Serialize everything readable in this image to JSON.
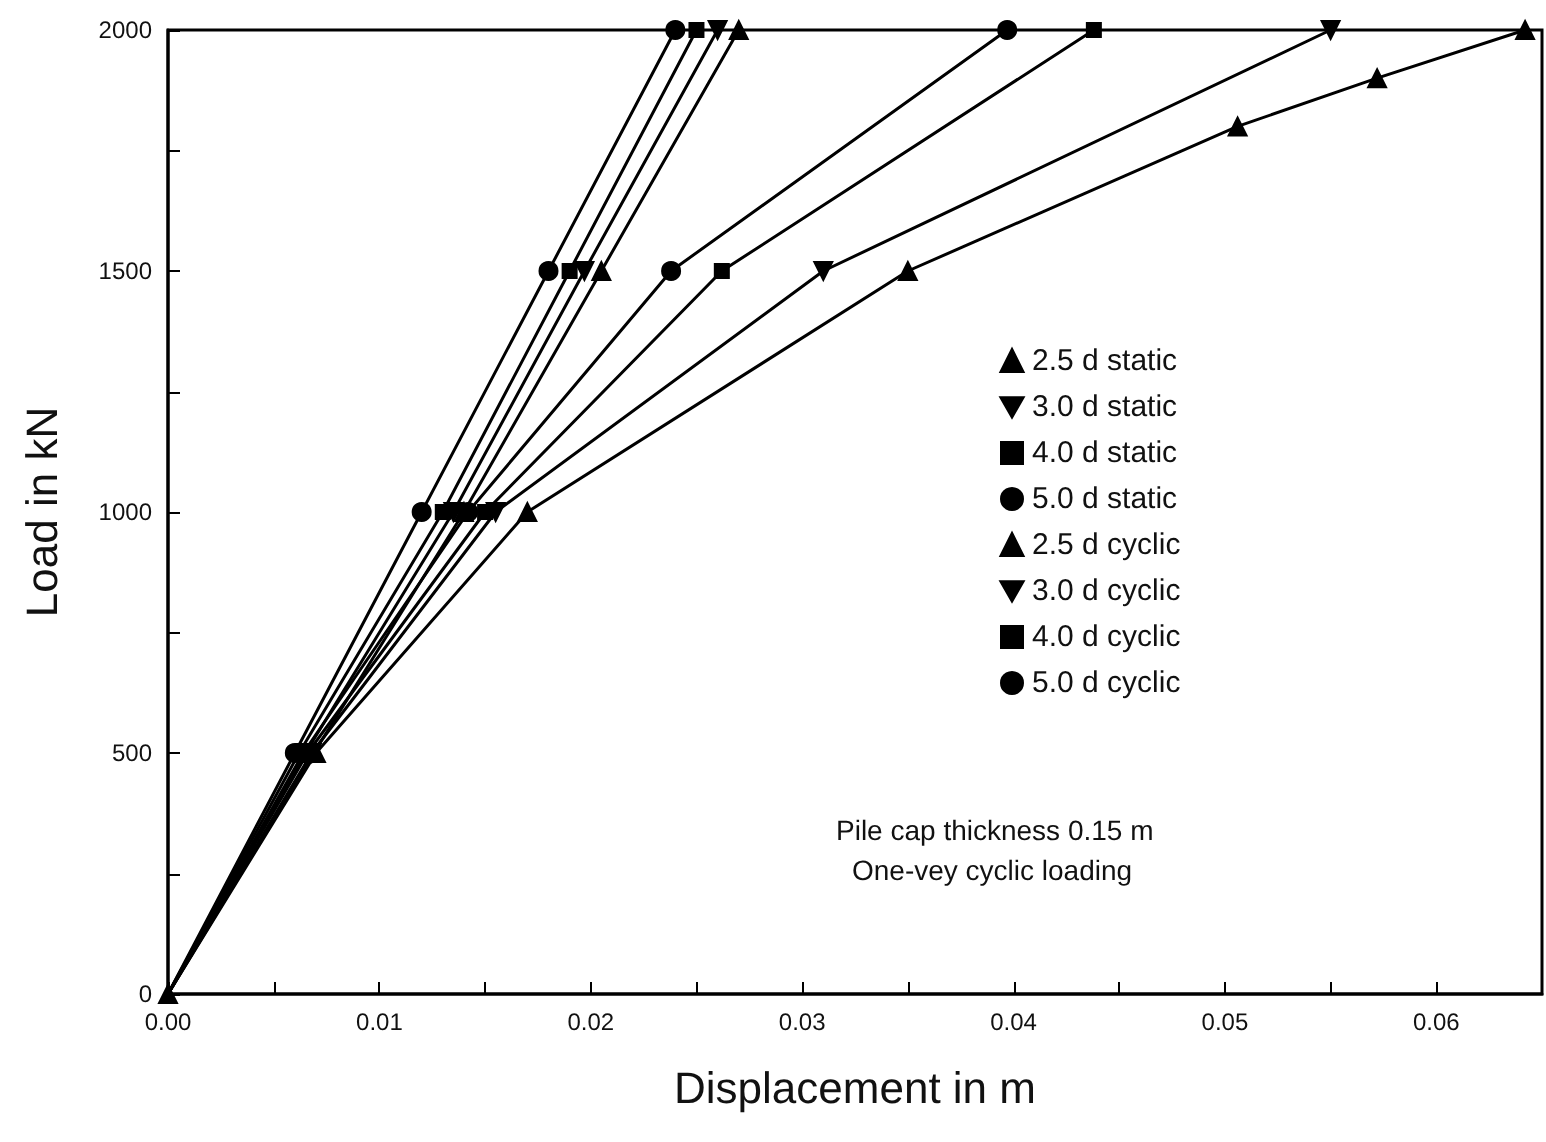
{
  "chart_data": {
    "type": "line",
    "xlabel": "Displacement in m",
    "ylabel": "Load in kN",
    "xlim": [
      0,
      0.065
    ],
    "ylim": [
      0,
      2000
    ],
    "xticks": [
      {
        "value": 0,
        "label": "0.00"
      },
      {
        "value": 0.005,
        "label": null
      },
      {
        "value": 0.01,
        "label": "0.01"
      },
      {
        "value": 0.015,
        "label": null
      },
      {
        "value": 0.02,
        "label": "0.02"
      },
      {
        "value": 0.025,
        "label": null
      },
      {
        "value": 0.03,
        "label": "0.03"
      },
      {
        "value": 0.035,
        "label": null
      },
      {
        "value": 0.04,
        "label": "0.04"
      },
      {
        "value": 0.045,
        "label": null
      },
      {
        "value": 0.05,
        "label": "0.05"
      },
      {
        "value": 0.055,
        "label": null
      },
      {
        "value": 0.06,
        "label": "0.06"
      }
    ],
    "yticks": [
      0,
      {
        "value": 250,
        "label": null
      },
      500,
      {
        "value": 750,
        "label": null
      },
      1000,
      {
        "value": 1250,
        "label": null
      },
      1500,
      {
        "value": 1750,
        "label": null
      },
      2000
    ],
    "grid": false,
    "legend": "right",
    "line_style": "solid",
    "annotations": [
      "Pile cap thickness 0.15 m",
      "One-vey cyclic loading"
    ],
    "series": [
      {
        "name": "2.5 d static",
        "color": "#000000",
        "marker": "triangle",
        "x": [
          0,
          0.0069,
          0.014,
          0.0205,
          0.027
        ],
        "values": [
          0,
          500,
          1000,
          1500,
          2000
        ]
      },
      {
        "name": "3.0 d static",
        "color": "#000000",
        "marker": "triangle-down",
        "x": [
          0,
          0.0065,
          0.0135,
          0.0197,
          0.026
        ],
        "values": [
          0,
          500,
          1000,
          1500,
          2000
        ]
      },
      {
        "name": "4.0 d static",
        "color": "#000000",
        "marker": "square",
        "x": [
          0,
          0.0062,
          0.013,
          0.019,
          0.025
        ],
        "values": [
          0,
          500,
          1000,
          1500,
          2000
        ]
      },
      {
        "name": "5.0 d static",
        "color": "#000000",
        "marker": "circle",
        "x": [
          0,
          0.006,
          0.012,
          0.018,
          0.024
        ],
        "values": [
          0,
          500,
          1000,
          1500,
          2000
        ]
      },
      {
        "name": "2.5 d cyclic",
        "color": "#000000",
        "marker": "triangle",
        "x": [
          0,
          0.007,
          0.017,
          0.035,
          0.0506,
          0.0572,
          0.0642
        ],
        "values": [
          0,
          500,
          1000,
          1500,
          1800,
          1900,
          2000
        ]
      },
      {
        "name": "3.0 d cyclic",
        "color": "#000000",
        "marker": "triangle-down",
        "x": [
          0,
          0.0068,
          0.0155,
          0.031,
          0.055
        ],
        "values": [
          0,
          500,
          1000,
          1500,
          2000
        ]
      },
      {
        "name": "4.0 d cyclic",
        "color": "#000000",
        "marker": "square",
        "x": [
          0,
          0.0066,
          0.015,
          0.0262,
          0.0438
        ],
        "values": [
          0,
          500,
          1000,
          1500,
          2000
        ]
      },
      {
        "name": "5.0 d cyclic",
        "color": "#000000",
        "marker": "circle",
        "x": [
          0,
          0.0064,
          0.0142,
          0.0238,
          0.0397
        ],
        "values": [
          0,
          500,
          1000,
          1500,
          2000
        ]
      }
    ]
  }
}
